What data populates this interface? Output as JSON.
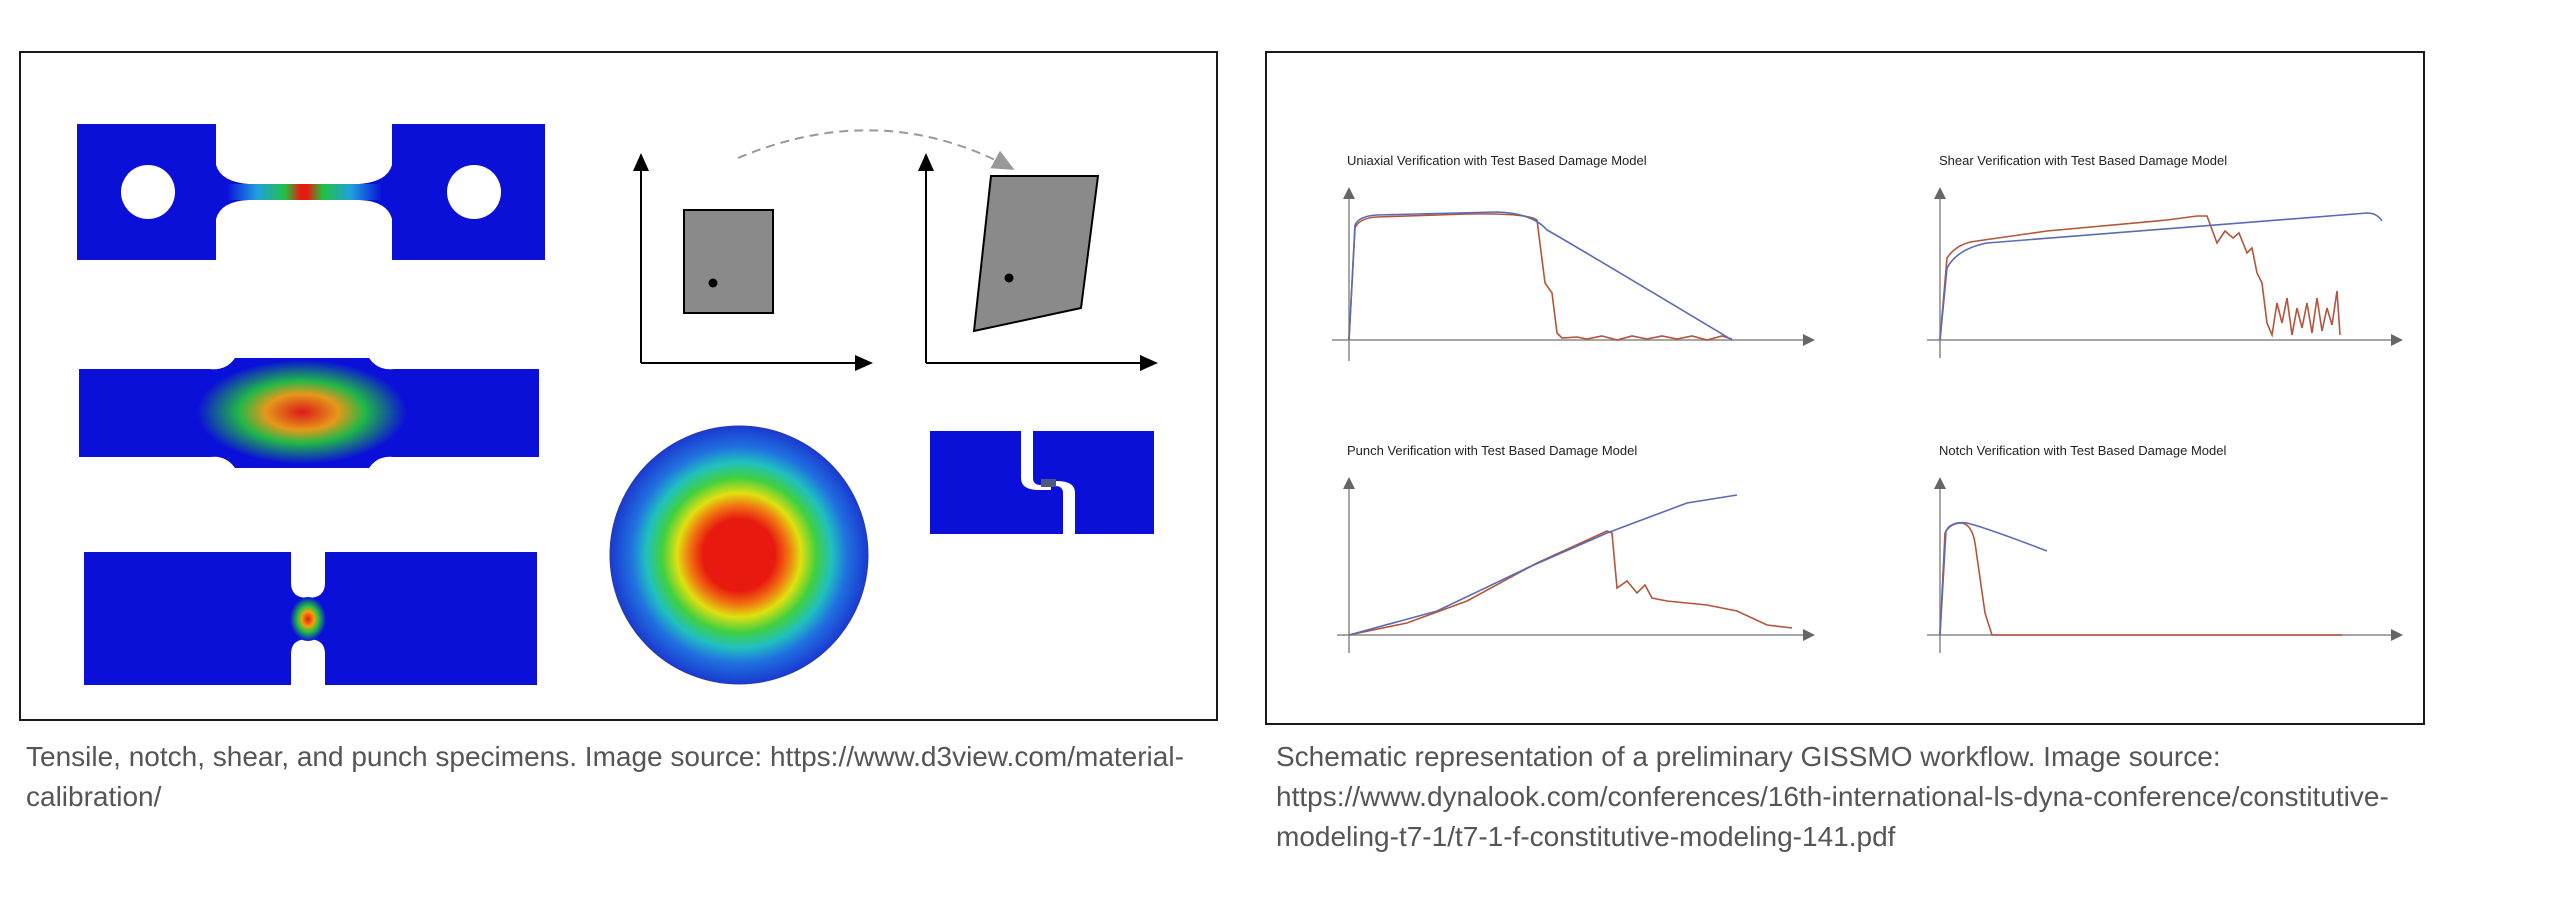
{
  "left_figure": {
    "caption": "Tensile, notch, shear, and punch specimens. Image source: https://www.d3view.com/material-\ncalibration/"
  },
  "right_figure": {
    "caption": "Schematic representation of a preliminary GISSMO workflow. Image source:\nhttps://www.dynalook.com/conferences/16th-international-ls-dyna-conference/constitutive-\nmodeling-t7-1/t7-1-f-constitutive-modeling-141.pdf",
    "plots": [
      {
        "title": "Uniaxial Verification with Test Based Damage Model"
      },
      {
        "title": "Shear Verification with Test Based Damage Model"
      },
      {
        "title": "Punch Verification with Test Based Damage Model"
      },
      {
        "title": "Notch Verification with Test Based Damage Model"
      }
    ],
    "series_colors": {
      "test": "#b5543a",
      "simulation": "#5a6bb5"
    }
  },
  "colors": {
    "fe_low": "#0a10d8",
    "fe_mid": "#22c040",
    "fe_high": "#e81a10",
    "shape_fill": "#8a8a8a"
  }
}
